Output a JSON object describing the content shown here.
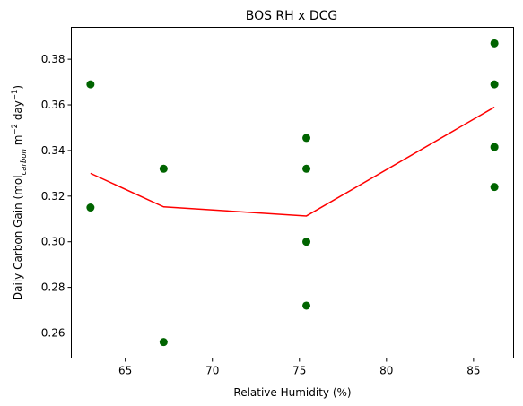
{
  "chart_data": {
    "type": "scatter",
    "title": "BOS RH x DCG",
    "xlabel": "Relative Humidity (%)",
    "ylabel_parts": {
      "base": "Daily Carbon Gain (mol",
      "sub": "carbon",
      "mid1": " m",
      "sup1": "−2",
      "mid2": " day",
      "sup2": "−1",
      "end": ")"
    },
    "xlim": [
      61.9,
      87.3
    ],
    "ylim": [
      0.249,
      0.394
    ],
    "xticks": [
      65,
      70,
      75,
      80,
      85
    ],
    "yticks": [
      0.26,
      0.28,
      0.3,
      0.32,
      0.34,
      0.36,
      0.38
    ],
    "grid": false,
    "series": [
      {
        "kind": "scatter",
        "color": "#006400",
        "points": [
          {
            "x": 63.0,
            "y": 0.369
          },
          {
            "x": 63.0,
            "y": 0.315
          },
          {
            "x": 67.2,
            "y": 0.332
          },
          {
            "x": 67.2,
            "y": 0.256
          },
          {
            "x": 75.4,
            "y": 0.3455
          },
          {
            "x": 75.4,
            "y": 0.332
          },
          {
            "x": 75.4,
            "y": 0.3
          },
          {
            "x": 75.4,
            "y": 0.272
          },
          {
            "x": 86.2,
            "y": 0.387
          },
          {
            "x": 86.2,
            "y": 0.369
          },
          {
            "x": 86.2,
            "y": 0.3415
          },
          {
            "x": 86.2,
            "y": 0.324
          }
        ]
      },
      {
        "kind": "line",
        "color": "#ff0000",
        "points": [
          {
            "x": 63.0,
            "y": 0.33
          },
          {
            "x": 67.2,
            "y": 0.3153
          },
          {
            "x": 75.4,
            "y": 0.3113
          },
          {
            "x": 86.2,
            "y": 0.359
          }
        ]
      }
    ]
  }
}
